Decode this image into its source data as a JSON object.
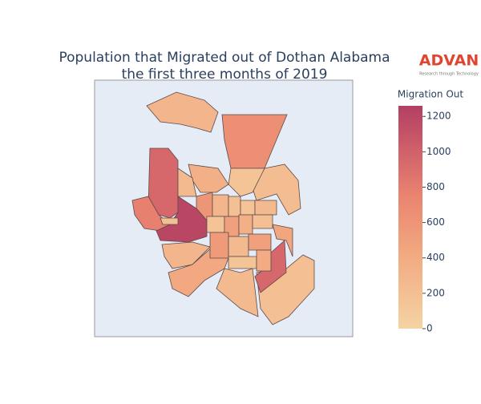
{
  "chart_data": {
    "type": "choropleth",
    "title": [
      "Population that Migrated out of Dothan Alabama",
      "the first three months of 2019"
    ],
    "brand": {
      "name": "ADVAN",
      "tagline": "Research through Technology"
    },
    "colorbar_title": "Migration Out",
    "colorscale": [
      [
        0,
        "#f5d3a3"
      ],
      [
        0.35,
        "#f2a77f"
      ],
      [
        0.6,
        "#e98370"
      ],
      [
        0.8,
        "#d0606a"
      ],
      [
        1,
        "#b23f62"
      ]
    ],
    "colorlim": [
      0,
      1260
    ],
    "colorticks": [
      0,
      200,
      400,
      600,
      800,
      1000,
      1200
    ],
    "values": [
      300,
      650,
      950,
      780,
      1200,
      200,
      300,
      420,
      250,
      200,
      950,
      450,
      220,
      150,
      350,
      250,
      600,
      300,
      200,
      150,
      250,
      150,
      500,
      350,
      200,
      550,
      250,
      500,
      150,
      400
    ]
  }
}
